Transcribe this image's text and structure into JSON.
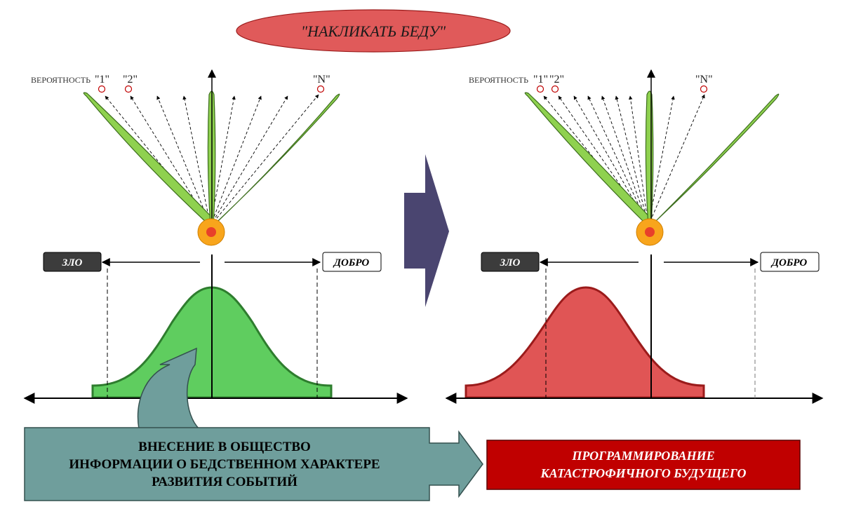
{
  "title": "\"НАКЛИКАТЬ БЕДУ\"",
  "left_panel": {
    "probability_label": "ВЕРОЯТНОСТЬ",
    "marker_1": "\"1\"",
    "marker_2": "\"2\"",
    "marker_n": "\"N\"",
    "evil_label": "ЗЛО",
    "good_label": "ДОБРО"
  },
  "right_panel": {
    "probability_label": "ВЕРОЯТНОСТЬ",
    "marker_1": "\"1\"",
    "marker_2": "\"2\"",
    "marker_n": "\"N\"",
    "evil_label": "ЗЛО",
    "good_label": "ДОБРО"
  },
  "input_box": {
    "line1": "ВНЕСЕНИЕ В ОБЩЕСТВО",
    "line2": "ИНФОРМАЦИИ О БЕДСТВЕННОМ ХАРАКТЕРЕ",
    "line3": "РАЗВИТИЯ СОБЫТИЙ"
  },
  "result_box": {
    "line1": "ПРОГРАММИРОВАНИЕ",
    "line2": "КАТАСТРОФИЧНОГО БУДУЩЕГО"
  },
  "colors": {
    "title_fill": "#e05a5a",
    "green": "#5fcd5f",
    "green_stroke": "#2e7d2e",
    "leaf": "#8fd14f",
    "red_curve": "#e05555",
    "red_stroke": "#9b1b1b",
    "center_arrow": "#4a4570",
    "teal": "#6f9e9c",
    "result_fill": "#c00000",
    "bulb_outer": "#f8a51c",
    "bulb_inner": "#e8402a"
  }
}
